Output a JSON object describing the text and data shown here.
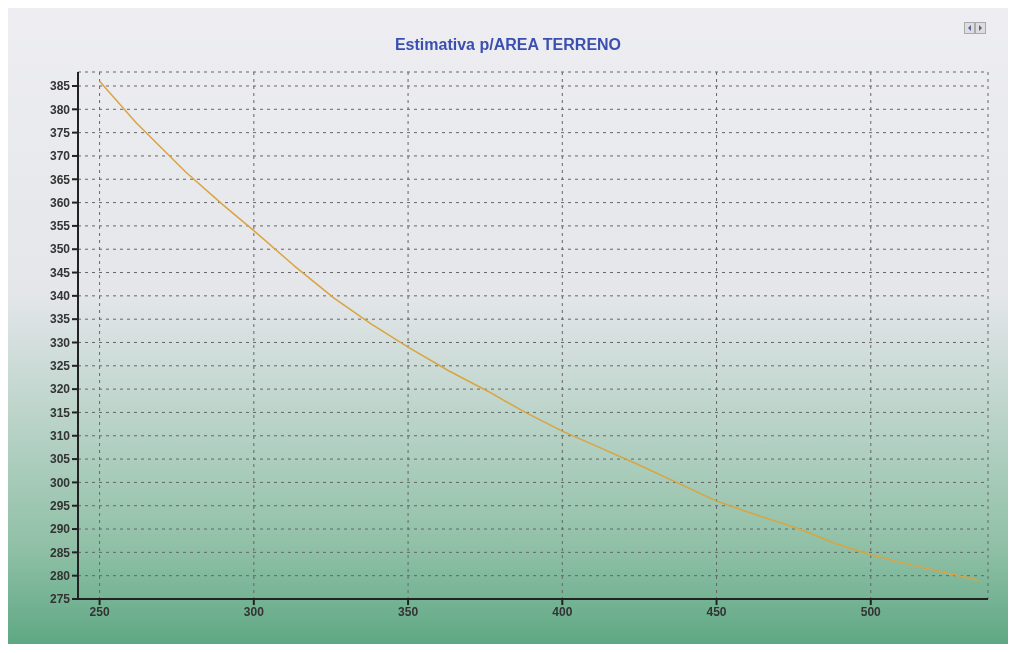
{
  "chart_data": {
    "type": "line",
    "title": "Estimativa p/AREA TERRENO",
    "x": [
      250,
      262,
      278,
      290,
      300,
      313,
      326,
      338,
      350,
      363,
      376,
      388,
      400,
      412,
      424,
      437,
      450,
      463,
      477,
      488,
      500,
      515,
      535
    ],
    "series": [
      {
        "color": "#d9a441",
        "values": [
          386,
          377,
          366.5,
          359.5,
          354,
          346.5,
          339.5,
          334,
          329,
          324,
          319.5,
          315,
          311,
          307.5,
          304,
          300,
          296,
          293,
          290,
          287,
          284.5,
          282,
          279
        ]
      }
    ],
    "xlim": [
      243,
      538
    ],
    "xticks": [
      250,
      300,
      350,
      400,
      450,
      500
    ],
    "ylim": [
      275,
      388
    ],
    "yticks": [
      275,
      280,
      285,
      290,
      295,
      300,
      305,
      310,
      315,
      320,
      325,
      330,
      335,
      340,
      345,
      350,
      355,
      360,
      365,
      370,
      375,
      380,
      385
    ],
    "grid": true,
    "marker": "none",
    "line_style": "solid"
  }
}
